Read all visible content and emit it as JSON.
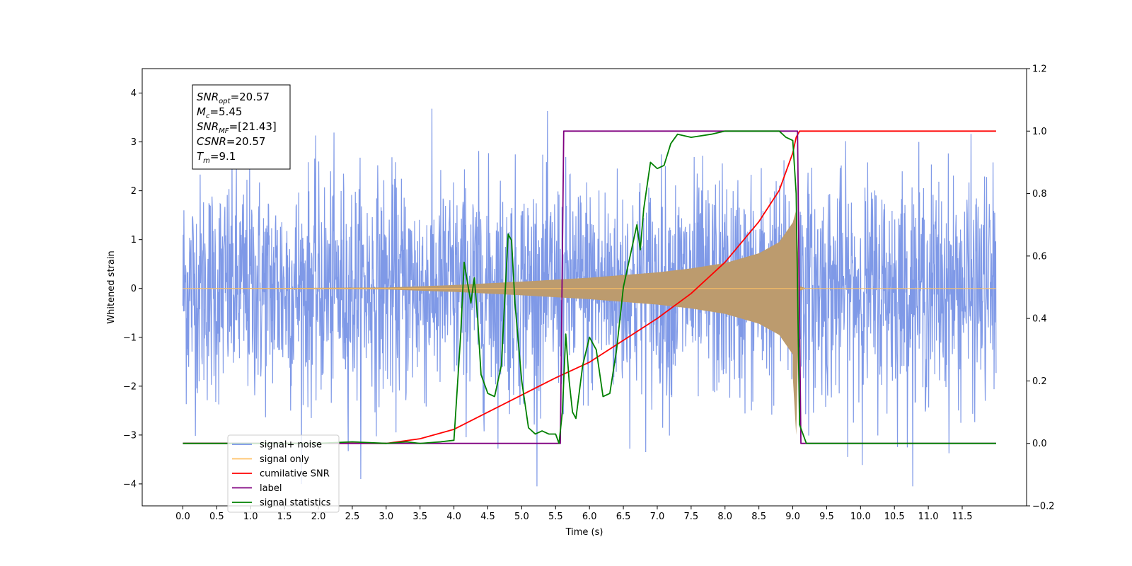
{
  "chart_data": {
    "type": "line",
    "title": "",
    "xlabel": "Time (s)",
    "ylabel": "Whitened strain",
    "y2label": "",
    "xlim": [
      -0.6,
      12.45
    ],
    "ylim": [
      -4.45,
      4.5
    ],
    "y2lim": [
      -0.2,
      1.2
    ],
    "x_ticks": [
      0.0,
      0.5,
      1.0,
      1.5,
      2.0,
      2.5,
      3.0,
      3.5,
      4.0,
      4.5,
      5.0,
      5.5,
      6.0,
      6.5,
      7.0,
      7.5,
      8.0,
      8.5,
      9.0,
      9.5,
      10.0,
      10.5,
      11.0,
      11.5
    ],
    "x_tick_labels": [
      "0.0",
      "0.5",
      "1.0",
      "1.5",
      "2.0",
      "2.5",
      "3.0",
      "3.5",
      "4.0",
      "4.5",
      "5.0",
      "5.5",
      "6.0",
      "6.5",
      "7.0",
      "7.5",
      "8.0",
      "8.5",
      "9.0",
      "9.5",
      "10.0",
      "10.5",
      "11.0",
      "11.5"
    ],
    "y_ticks": [
      -4,
      -3,
      -2,
      -1,
      0,
      1,
      2,
      3,
      4
    ],
    "y_tick_labels": [
      "−4",
      "−3",
      "−2",
      "−1",
      "0",
      "1",
      "2",
      "3",
      "4"
    ],
    "y2_ticks": [
      -0.2,
      0.0,
      0.2,
      0.4,
      0.6,
      0.8,
      1.0,
      1.2
    ],
    "y2_tick_labels": [
      "−0.2",
      "0.0",
      "0.2",
      "0.4",
      "0.6",
      "0.8",
      "1.0",
      "1.2"
    ],
    "grid": false,
    "legend_position": "lower-left",
    "annotation": {
      "lines": [
        {
          "base": "SNR",
          "sub": "opt",
          "value": "=20.57"
        },
        {
          "base": "M",
          "sub": "c",
          "value": "=5.45"
        },
        {
          "base": "SNR",
          "sub": "MF",
          "value": "=[21.43]"
        },
        {
          "base": "CSNR",
          "sub": "",
          "value": "=20.57"
        },
        {
          "base": "T",
          "sub": "m",
          "value": "=9.1"
        }
      ]
    },
    "series": [
      {
        "name": "signal+ noise",
        "color": "#7893e6",
        "axis": "left",
        "style": "noise",
        "x_range": [
          0.0,
          12.0
        ],
        "amplitude_std": 1.15,
        "peak_range": [
          -4.05,
          3.68
        ]
      },
      {
        "name": "signal only",
        "color": "#ffc266",
        "fill_color": "#bc9b6e",
        "axis": "left",
        "style": "chirp-envelope",
        "envelope_points": [
          [
            0.0,
            0.0
          ],
          [
            3.0,
            0.02
          ],
          [
            4.0,
            0.07
          ],
          [
            5.0,
            0.14
          ],
          [
            6.0,
            0.22
          ],
          [
            7.0,
            0.33
          ],
          [
            7.5,
            0.41
          ],
          [
            8.0,
            0.52
          ],
          [
            8.5,
            0.72
          ],
          [
            8.8,
            0.95
          ],
          [
            9.0,
            1.35
          ],
          [
            9.05,
            1.6
          ],
          [
            9.1,
            0.05
          ],
          [
            9.2,
            0.0
          ],
          [
            12.0,
            0.0
          ]
        ],
        "tail_dip": [
          [
            9.0,
            -1.8
          ],
          [
            9.05,
            -3.0
          ],
          [
            9.1,
            -0.05
          ]
        ]
      },
      {
        "name": "cumilative SNR",
        "color": "#ff0000",
        "axis": "right",
        "x": [
          0.0,
          3.0,
          3.5,
          4.0,
          4.5,
          5.0,
          5.5,
          6.0,
          6.5,
          7.0,
          7.5,
          8.0,
          8.5,
          8.8,
          9.0,
          9.05,
          9.1,
          12.0
        ],
        "values": [
          0.0,
          0.0,
          0.015,
          0.045,
          0.1,
          0.155,
          0.21,
          0.26,
          0.33,
          0.4,
          0.48,
          0.58,
          0.71,
          0.81,
          0.93,
          0.98,
          1.0,
          1.0
        ]
      },
      {
        "name": "label",
        "color": "#800080",
        "axis": "right",
        "x": [
          0.0,
          5.57,
          5.62,
          9.07,
          9.12,
          12.0
        ],
        "values": [
          0.0,
          0.0,
          1.0,
          1.0,
          0.0,
          0.0
        ]
      },
      {
        "name": "signal statistics",
        "color": "#008000",
        "axis": "right",
        "x": [
          0.0,
          1.0,
          2.0,
          2.5,
          3.0,
          3.3,
          3.5,
          3.8,
          4.0,
          4.1,
          4.15,
          4.25,
          4.3,
          4.35,
          4.4,
          4.5,
          4.6,
          4.7,
          4.8,
          4.85,
          4.9,
          5.0,
          5.1,
          5.2,
          5.3,
          5.4,
          5.5,
          5.55,
          5.6,
          5.65,
          5.7,
          5.75,
          5.8,
          5.9,
          6.0,
          6.1,
          6.2,
          6.3,
          6.4,
          6.5,
          6.6,
          6.7,
          6.75,
          6.8,
          6.9,
          7.0,
          7.1,
          7.2,
          7.3,
          7.5,
          7.8,
          8.0,
          8.5,
          8.8,
          8.9,
          9.0,
          9.05,
          9.1,
          9.2,
          10.0,
          12.0
        ],
        "values": [
          0.0,
          0.0,
          0.0,
          0.005,
          0.0,
          0.005,
          0.0,
          0.005,
          0.01,
          0.35,
          0.58,
          0.45,
          0.53,
          0.4,
          0.22,
          0.16,
          0.15,
          0.25,
          0.67,
          0.65,
          0.45,
          0.2,
          0.05,
          0.03,
          0.04,
          0.03,
          0.03,
          0.0,
          0.1,
          0.35,
          0.2,
          0.1,
          0.08,
          0.25,
          0.34,
          0.3,
          0.15,
          0.16,
          0.3,
          0.5,
          0.6,
          0.7,
          0.62,
          0.75,
          0.9,
          0.88,
          0.89,
          0.96,
          0.99,
          0.98,
          0.99,
          1.0,
          1.0,
          1.0,
          0.98,
          0.97,
          0.8,
          0.06,
          0.0,
          0.0,
          0.0
        ]
      }
    ]
  },
  "legend": {
    "items": [
      {
        "label": "signal+ noise",
        "color": "#7893e6"
      },
      {
        "label": "signal only",
        "color": "#ffc266"
      },
      {
        "label": "cumilative SNR",
        "color": "#ff0000"
      },
      {
        "label": "label",
        "color": "#800080"
      },
      {
        "label": "signal statistics",
        "color": "#008000"
      }
    ]
  }
}
